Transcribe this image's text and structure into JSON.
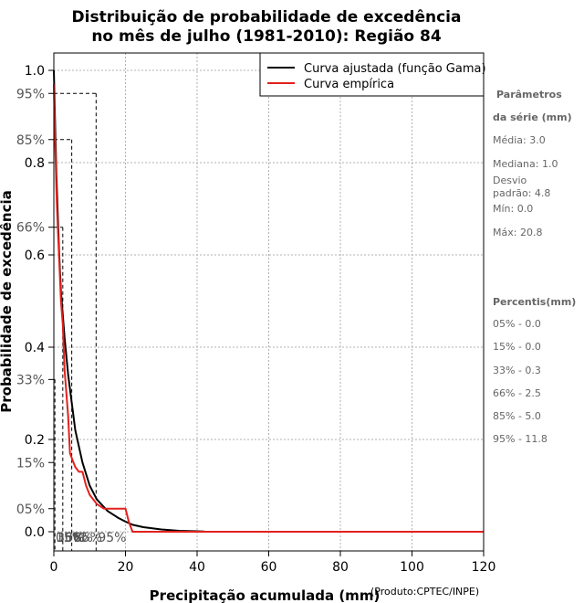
{
  "chart_data": {
    "type": "line",
    "title_line1": "Distribuição de probabilidade de excedência",
    "title_line2": "no mês de julho (1981-2010): Região 84",
    "xlabel": "Precipitação acumulada (mm)",
    "ylabel": "Probabilidade de excedência",
    "credit": "(Produto:CPTEC/INPE)",
    "xlim": [
      0,
      120
    ],
    "ylim": [
      0,
      1
    ],
    "x_ticks": [
      0,
      20,
      40,
      60,
      80,
      100,
      120
    ],
    "x_tick_labels": [
      "0",
      "20",
      "40",
      "60",
      "80",
      "100",
      "120"
    ],
    "y_ticks": [
      0.0,
      0.2,
      0.4,
      0.6,
      0.8,
      1.0
    ],
    "y_tick_labels": [
      "0.0",
      "0.2",
      "0.4",
      "0.6",
      "0.8",
      "1.0"
    ],
    "y_percent_ticks": [
      {
        "value": 0.95,
        "label": "95%"
      },
      {
        "value": 0.85,
        "label": "85%"
      },
      {
        "value": 0.66,
        "label": "66%"
      },
      {
        "value": 0.33,
        "label": "33%"
      },
      {
        "value": 0.15,
        "label": "15%"
      },
      {
        "value": 0.05,
        "label": "05%"
      }
    ],
    "x_percent_labels": [
      {
        "value": 0.0,
        "label": "05%"
      },
      {
        "value": 0.0,
        "label": "15%"
      },
      {
        "value": 0.3,
        "label": "33%"
      },
      {
        "value": 2.5,
        "label": "66%"
      },
      {
        "value": 5.0,
        "label": "85%"
      },
      {
        "value": 11.8,
        "label": "95%"
      }
    ],
    "grid": true,
    "legend": "top-right",
    "series": [
      {
        "name": "Curva ajustada (função Gama)",
        "color": "#000000",
        "x": [
          0,
          0.3,
          0.7,
          1,
          1.5,
          2,
          3,
          4,
          5,
          6,
          8,
          10,
          12,
          15,
          18,
          20,
          22,
          25,
          30,
          35,
          40,
          42
        ],
        "y": [
          1.0,
          0.9,
          0.78,
          0.71,
          0.6,
          0.52,
          0.42,
          0.34,
          0.28,
          0.22,
          0.15,
          0.1,
          0.07,
          0.045,
          0.03,
          0.022,
          0.015,
          0.01,
          0.005,
          0.002,
          0.001,
          0.0005
        ]
      },
      {
        "name": "Curva empírica",
        "color": "#e3211c",
        "x": [
          0,
          0.2,
          0.4,
          0.8,
          1,
          2,
          2.5,
          3,
          4,
          4.5,
          5,
          6,
          7,
          8,
          9,
          10,
          12,
          14,
          16,
          18,
          20,
          21,
          22,
          30,
          40,
          60,
          80,
          100,
          120
        ],
        "y": [
          0.97,
          0.9,
          0.83,
          0.72,
          0.68,
          0.5,
          0.45,
          0.35,
          0.25,
          0.17,
          0.16,
          0.14,
          0.13,
          0.13,
          0.1,
          0.08,
          0.06,
          0.05,
          0.05,
          0.05,
          0.05,
          0.02,
          0.0,
          0.0,
          0.0,
          0.0,
          0.0,
          0.0,
          0.0
        ]
      }
    ],
    "reference_lines": [
      {
        "x": 0.0,
        "y": 0.05
      },
      {
        "x": 0.0,
        "y": 0.15
      },
      {
        "x": 0.3,
        "y": 0.33
      },
      {
        "x": 2.5,
        "y": 0.66
      },
      {
        "x": 5.0,
        "y": 0.85
      },
      {
        "x": 11.8,
        "y": 0.95
      }
    ]
  },
  "stats_panel": {
    "params_title_1": "Parâmetros",
    "params_title_2": "da série (mm)",
    "media": "Média: 3.0",
    "mediana": "Mediana: 1.0",
    "desvio_1": "Desvio",
    "desvio_2": "padrão: 4.8",
    "min": "Mín: 0.0",
    "max": "Máx: 20.8",
    "percentis_title": "Percentis(mm)",
    "p05": "05% - 0.0",
    "p15": "15% - 0.0",
    "p33": "33% - 0.3",
    "p66": "66% - 2.5",
    "p85": "85% - 5.0",
    "p95": "95% - 11.8"
  }
}
